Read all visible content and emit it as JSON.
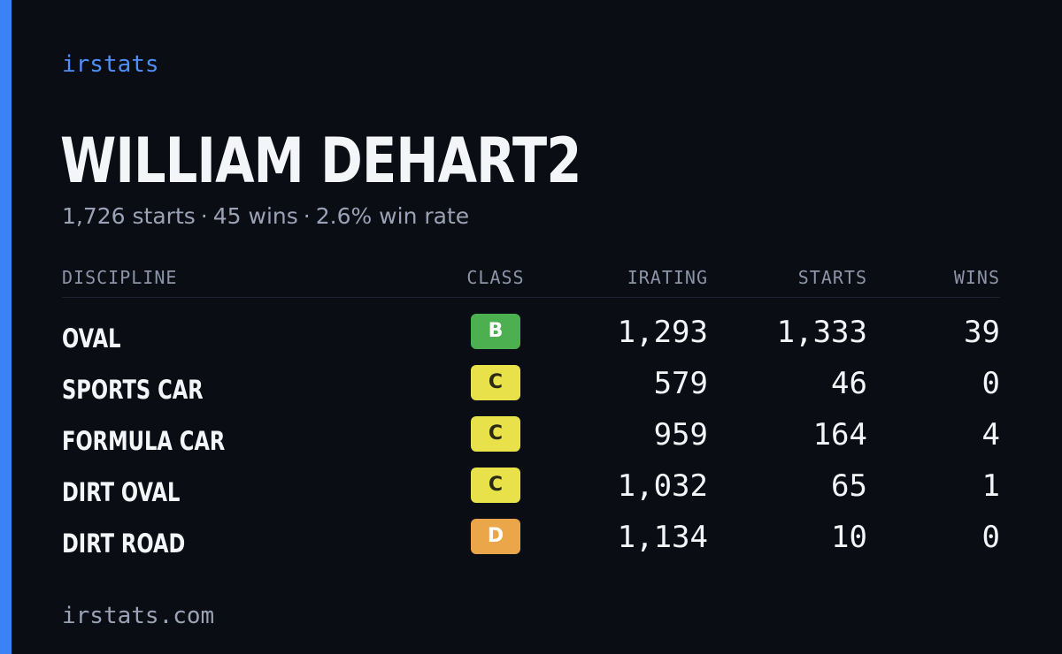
{
  "brand": "irstats",
  "player": {
    "name": "WILLIAM DEHART2",
    "starts_text": "1,726 starts",
    "wins_text": "45 wins",
    "winrate_text": "2.6% win rate",
    "separator": "·"
  },
  "table": {
    "headers": {
      "discipline": "DISCIPLINE",
      "class": "CLASS",
      "irating": "IRATING",
      "starts": "STARTS",
      "wins": "WINS"
    },
    "rows": [
      {
        "discipline": "OVAL",
        "class": "B",
        "class_color": "#4caf50",
        "class_text_color": "#ffffff",
        "irating": "1,293",
        "starts": "1,333",
        "wins": "39"
      },
      {
        "discipline": "SPORTS CAR",
        "class": "C",
        "class_color": "#e8e14a",
        "class_text_color": "#2a2a12",
        "irating": "579",
        "starts": "46",
        "wins": "0"
      },
      {
        "discipline": "FORMULA CAR",
        "class": "C",
        "class_color": "#e8e14a",
        "class_text_color": "#2a2a12",
        "irating": "959",
        "starts": "164",
        "wins": "4"
      },
      {
        "discipline": "DIRT OVAL",
        "class": "C",
        "class_color": "#e8e14a",
        "class_text_color": "#2a2a12",
        "irating": "1,032",
        "starts": "65",
        "wins": "1"
      },
      {
        "discipline": "DIRT ROAD",
        "class": "D",
        "class_color": "#eba64a",
        "class_text_color": "#ffffff",
        "irating": "1,134",
        "starts": "10",
        "wins": "0"
      }
    ]
  },
  "footer": "irstats.com",
  "colors": {
    "background": "#0b0d14",
    "accent": "#3b82f6"
  }
}
